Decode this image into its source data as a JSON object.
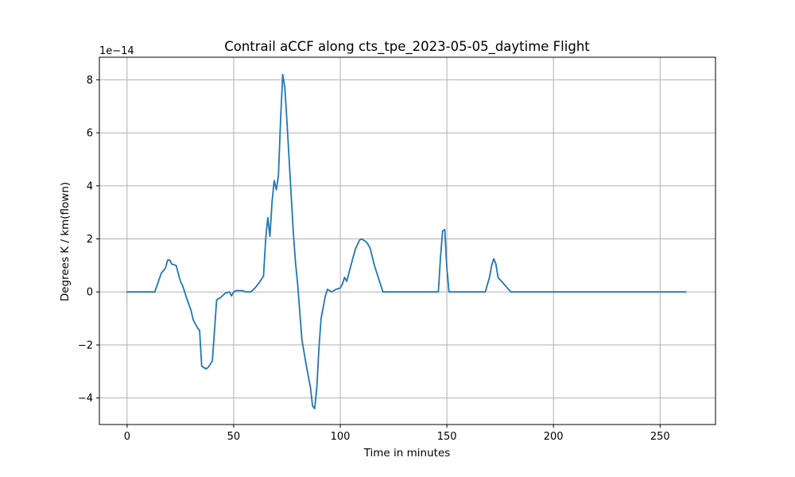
{
  "chart_data": {
    "type": "line",
    "title": "Contrail aCCF along cts_tpe_2023-05-05_daytime Flight",
    "xlabel": "Time in minutes",
    "ylabel": "Degrees K / km(flown)",
    "y_offset_label": "1e−14",
    "xlim": [
      -13,
      276
    ],
    "ylim": [
      -5.0,
      8.85
    ],
    "x_ticks": [
      0,
      50,
      100,
      150,
      200,
      250
    ],
    "x_tick_labels": [
      "0",
      "50",
      "100",
      "150",
      "200",
      "250"
    ],
    "y_ticks": [
      -4,
      -2,
      0,
      2,
      4,
      6,
      8
    ],
    "y_tick_labels": [
      "−4",
      "−2",
      "0",
      "2",
      "4",
      "6",
      "8"
    ],
    "grid": true,
    "legend": "none",
    "color": "#1f77b4",
    "series": [
      {
        "x": [
          0,
          13,
          16,
          18,
          19,
          20,
          21,
          23,
          25,
          26,
          28,
          30,
          31,
          33,
          34,
          35,
          37,
          38,
          40,
          42,
          44,
          46,
          48,
          49,
          50,
          51,
          52,
          54,
          56,
          58,
          60,
          62,
          64,
          65,
          66,
          67,
          68,
          69,
          70,
          71,
          72,
          73,
          74,
          75,
          76,
          77,
          78,
          79,
          80,
          82,
          84,
          86,
          87,
          88,
          89,
          90,
          91,
          93,
          94,
          95,
          96,
          98,
          100,
          101,
          102,
          103,
          104,
          105,
          107,
          109,
          110,
          112,
          113,
          114,
          116,
          118,
          120,
          125,
          135,
          146,
          147,
          148,
          149,
          150,
          151,
          155,
          165,
          168,
          170,
          171,
          172,
          173,
          174,
          180,
          200,
          220,
          240,
          262
        ],
        "y": [
          0,
          0,
          0.7,
          0.9,
          1.2,
          1.2,
          1.05,
          1.0,
          0.4,
          0.25,
          -0.25,
          -0.7,
          -1.05,
          -1.35,
          -1.45,
          -2.8,
          -2.9,
          -2.85,
          -2.6,
          -0.3,
          -0.2,
          -0.05,
          0,
          -0.15,
          0,
          0.05,
          0.05,
          0.05,
          0,
          0,
          0.15,
          0.35,
          0.6,
          2.0,
          2.8,
          2.1,
          3.4,
          4.2,
          3.85,
          4.4,
          6.5,
          8.2,
          7.7,
          6.4,
          5.0,
          3.6,
          2.2,
          1.1,
          0.3,
          -1.8,
          -2.75,
          -3.6,
          -4.3,
          -4.4,
          -3.6,
          -2.1,
          -1.0,
          -0.15,
          0.1,
          0.05,
          0,
          0.1,
          0.15,
          0.3,
          0.55,
          0.4,
          0.7,
          1.0,
          1.6,
          1.95,
          2.0,
          1.9,
          1.8,
          1.65,
          1.0,
          0.5,
          0,
          0,
          0,
          0,
          1.3,
          2.3,
          2.35,
          0.9,
          0,
          0,
          0,
          0,
          0.55,
          1.0,
          1.25,
          1.05,
          0.55,
          0,
          0,
          0,
          0,
          0
        ]
      }
    ]
  }
}
